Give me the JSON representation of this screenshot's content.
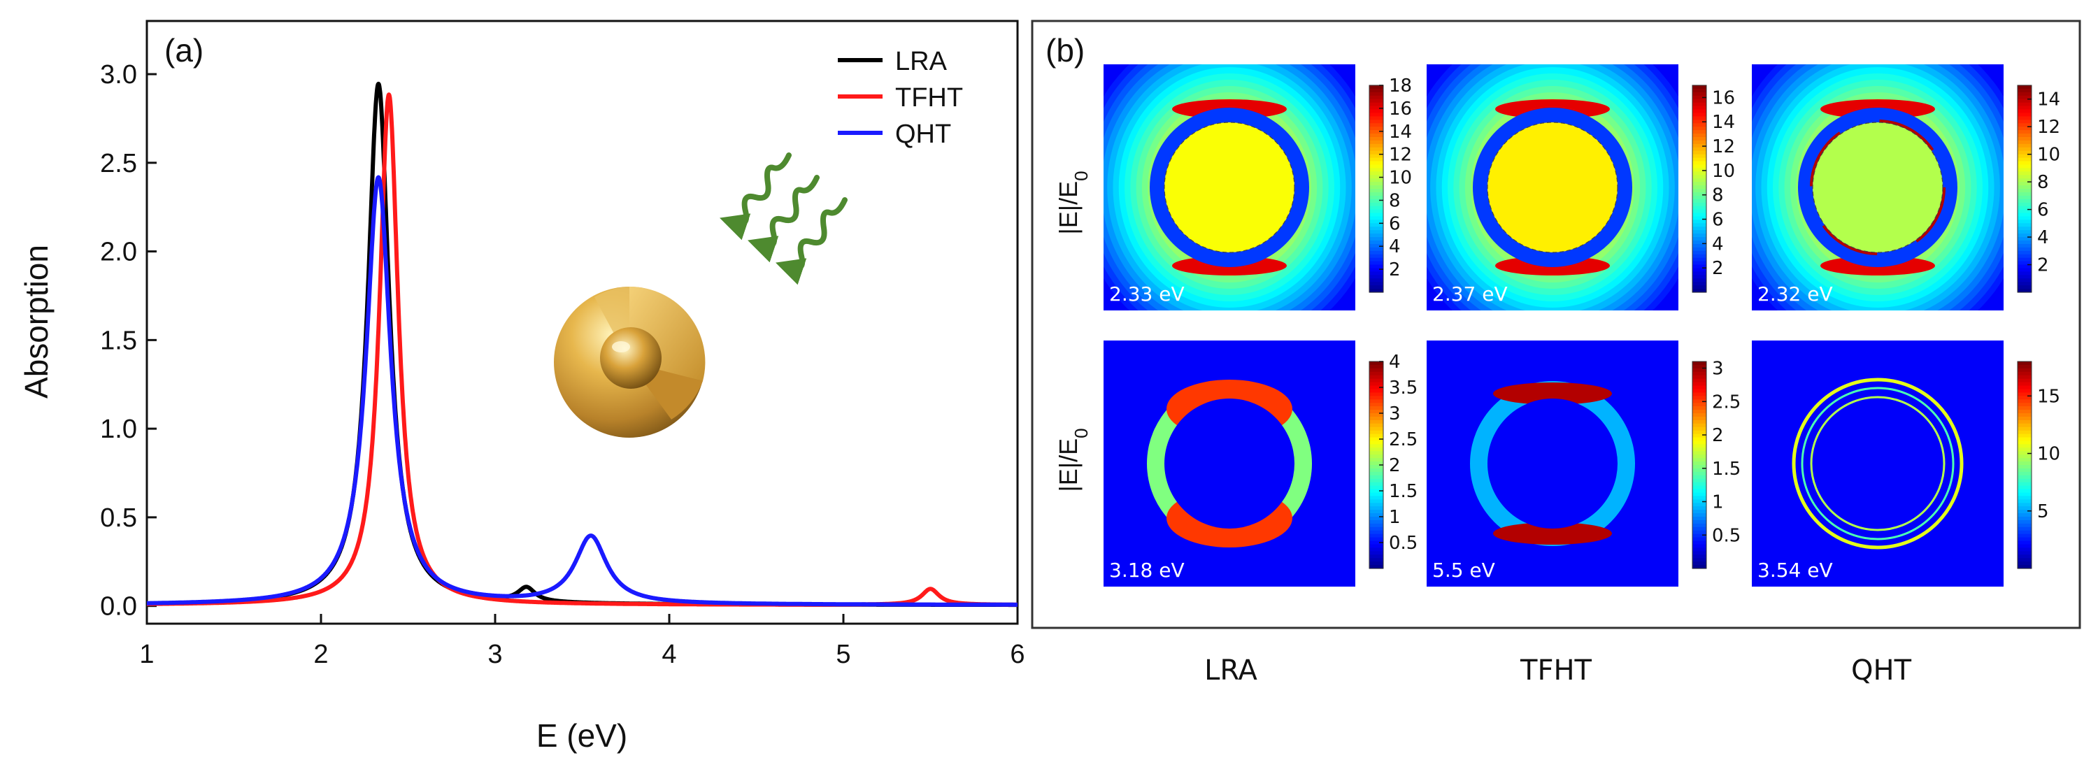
{
  "chart_data": [
    {
      "type": "line",
      "panel": "(a)",
      "xlabel": "E (eV)",
      "ylabel": "Absorption",
      "xlim": [
        1,
        6
      ],
      "ylim": [
        -0.1,
        3.3
      ],
      "xticks": [
        "1",
        "2",
        "3",
        "4",
        "5",
        "6"
      ],
      "yticks": [
        "0.0",
        "0.5",
        "1.0",
        "1.5",
        "2.0",
        "2.5",
        "3.0"
      ],
      "xtick_values": [
        1,
        2,
        3,
        4,
        5,
        6
      ],
      "ytick_values": [
        0,
        0.5,
        1.0,
        1.5,
        2.0,
        2.5,
        3.0
      ],
      "legend_position": "top-right",
      "series": [
        {
          "name": "LRA",
          "color": "#000000",
          "base": 0.005,
          "peaks": [
            {
              "center": 2.33,
              "height": 2.94,
              "width": 0.075
            },
            {
              "center": 3.18,
              "height": 0.08,
              "width": 0.06
            }
          ]
        },
        {
          "name": "TFHT",
          "color": "#ff1a1a",
          "base": 0.005,
          "peaks": [
            {
              "center": 2.39,
              "height": 2.88,
              "width": 0.065
            },
            {
              "center": 5.5,
              "height": 0.09,
              "width": 0.06
            }
          ]
        },
        {
          "name": "QHT",
          "color": "#1a1aff",
          "base": 0.005,
          "peaks": [
            {
              "center": 2.33,
              "height": 2.41,
              "width": 0.085
            },
            {
              "center": 3.55,
              "height": 0.38,
              "width": 0.11
            }
          ]
        }
      ],
      "inset": {
        "description_icon": "core-shell-sphere-icon",
        "wave_icon": "incident-light-waves-icon",
        "wave_color": "#4e8a2f"
      }
    },
    {
      "type": "heatmap",
      "panel": "(b)",
      "ylabel": "|E|/E0",
      "ylabel_main": "|E|/E",
      "ylabel_sub": "0",
      "columns": [
        "LRA",
        "TFHT",
        "QHT"
      ],
      "maps": [
        {
          "row": 0,
          "col": 0,
          "energy": "2.33 eV",
          "max": 18,
          "ticks": [
            "18",
            "16",
            "14",
            "12",
            "10",
            "8",
            "6",
            "4",
            "2"
          ],
          "tick_values": [
            18,
            16,
            14,
            12,
            10,
            8,
            6,
            4,
            2
          ],
          "field": "core-dipole",
          "core_level": 0.62
        },
        {
          "row": 0,
          "col": 1,
          "energy": "2.37 eV",
          "max": 17,
          "ticks": [
            "16",
            "14",
            "12",
            "10",
            "8",
            "6",
            "4",
            "2"
          ],
          "tick_values": [
            16,
            14,
            12,
            10,
            8,
            6,
            4,
            2
          ],
          "field": "core-dipole",
          "core_level": 0.64
        },
        {
          "row": 0,
          "col": 2,
          "energy": "2.32 eV",
          "max": 15,
          "ticks": [
            "14",
            "12",
            "10",
            "8",
            "6",
            "4",
            "2"
          ],
          "tick_values": [
            14,
            12,
            10,
            8,
            6,
            4,
            2
          ],
          "field": "core-dipole-sharp",
          "core_level": 0.55
        },
        {
          "row": 1,
          "col": 0,
          "energy": "3.18 eV",
          "max": 4,
          "ticks": [
            "4",
            "3.5",
            "3",
            "2.5",
            "2",
            "1.5",
            "1",
            "0.5"
          ],
          "tick_values": [
            4,
            3.5,
            3,
            2.5,
            2,
            1.5,
            1,
            0.5
          ],
          "field": "shell-wide",
          "core_level": 0.05
        },
        {
          "row": 1,
          "col": 1,
          "energy": "5.5 eV",
          "max": 3.1,
          "ticks": [
            "3",
            "2.5",
            "2",
            "1.5",
            "1",
            "0.5"
          ],
          "tick_values": [
            3,
            2.5,
            2,
            1.5,
            1,
            0.5
          ],
          "field": "shell-bands",
          "core_level": 0.05
        },
        {
          "row": 1,
          "col": 2,
          "energy": "3.54 eV",
          "max": 18,
          "ticks": [
            "15",
            "10",
            "5"
          ],
          "tick_values": [
            15,
            10,
            5
          ],
          "field": "shell-thin-rings",
          "core_level": 0.05
        }
      ]
    }
  ],
  "colors": {
    "axis": "#111111",
    "panel_border": "#333333",
    "colormap": "jet"
  }
}
